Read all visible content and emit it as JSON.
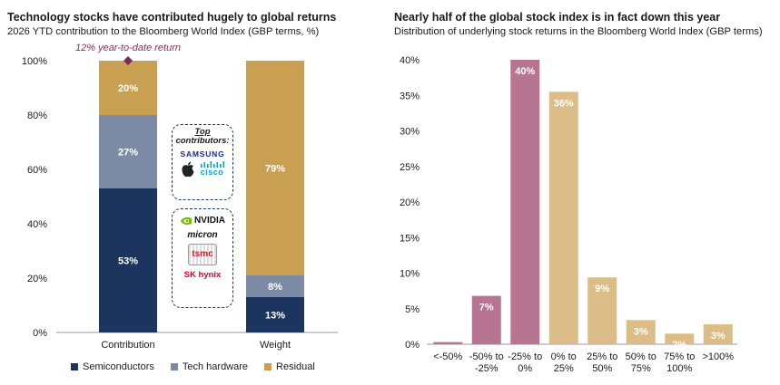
{
  "left_panel": {
    "title": "Technology stocks have contributed hugely to global returns",
    "subtitle": "2026 YTD contribution to the Bloomberg World Index (GBP terms, %)",
    "annotation": "12% year-to-date return",
    "logo_box_top_heading_1": "Top",
    "logo_box_top_heading_2": "contributors:",
    "logos_top": [
      "SAMSUNG",
      "cisco"
    ],
    "logos_bottom": [
      "NVIDIA",
      "micron",
      "tsmc",
      "SK hynix"
    ],
    "colors": {
      "semiconductors": "#1c355e",
      "tech_hardware": "#7d8aa6",
      "residual": "#c9a052",
      "marker": "#7b2b57",
      "annotation": "#8b2d5c"
    }
  },
  "right_panel": {
    "title": "Nearly half of the global stock index is in fact down this year",
    "subtitle": "Distribution of underlying stock returns in the Bloomberg World Index (GBP terms)",
    "colors": {
      "negative": "#b87591",
      "positive": "#dcbd87"
    }
  },
  "chart_data": [
    {
      "type": "bar",
      "stacked": true,
      "categories": [
        "Contribution",
        "Weight"
      ],
      "series": [
        {
          "name": "Semiconductors",
          "values": [
            53,
            13
          ],
          "labels": [
            "53%",
            "13%"
          ]
        },
        {
          "name": "Tech hardware",
          "values": [
            27,
            8
          ],
          "labels": [
            "27%",
            "8%"
          ]
        },
        {
          "name": "Residual",
          "values": [
            20,
            79
          ],
          "labels": [
            "20%",
            "79%"
          ]
        }
      ],
      "yticks": [
        "0%",
        "20%",
        "40%",
        "60%",
        "80%",
        "100%"
      ],
      "ylim": [
        0,
        100
      ],
      "title": "Technology stocks have contributed hugely to global returns",
      "legend": "bottom",
      "marker": {
        "category": "Contribution",
        "value": 100,
        "label": "12% year-to-date return"
      }
    },
    {
      "type": "bar",
      "categories": [
        [
          "<-50%"
        ],
        [
          "-50% to",
          "-25%"
        ],
        [
          "-25% to",
          "0%"
        ],
        [
          "0% to",
          "25%"
        ],
        [
          "25% to",
          "50%"
        ],
        [
          "50% to",
          "75%"
        ],
        [
          "75% to",
          "100%"
        ],
        [
          ">100%"
        ]
      ],
      "values": [
        0.3,
        6.8,
        40,
        35.5,
        9.4,
        3.4,
        1.5,
        2.8
      ],
      "labels": [
        "",
        "7%",
        "40%",
        "36%",
        "9%",
        "3%",
        "2%",
        "3%"
      ],
      "yticks": [
        "0%",
        "5%",
        "10%",
        "15%",
        "20%",
        "25%",
        "30%",
        "35%",
        "40%"
      ],
      "ylim": [
        0,
        40
      ],
      "title": "Nearly half of the global stock index is in fact down this year"
    }
  ]
}
